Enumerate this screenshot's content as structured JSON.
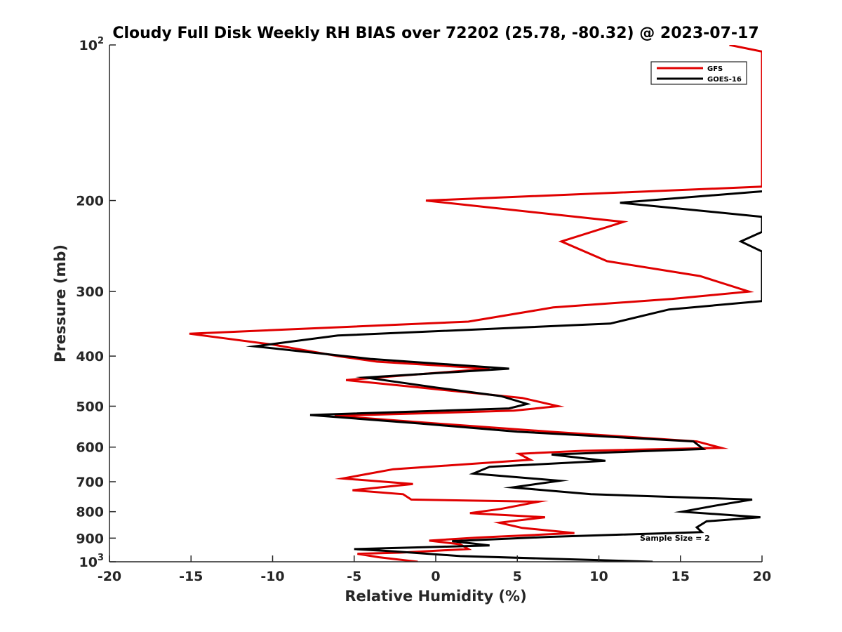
{
  "chart_data": {
    "type": "line",
    "title": "Cloudy Full Disk Weekly RH BIAS over 72202 (25.78, -80.32) @ 2023-07-17",
    "xlabel": "Relative Humidity (%)",
    "ylabel": "Pressure (mb)",
    "xlim": [
      -20,
      20
    ],
    "ylim": [
      100,
      1000
    ],
    "yscale": "log",
    "y_reversed": true,
    "xticks": [
      -20,
      -15,
      -10,
      -5,
      0,
      5,
      10,
      15,
      20
    ],
    "yticks": [
      {
        "value": 100,
        "base": "10",
        "exp": "2"
      },
      {
        "value": 200,
        "label": "200"
      },
      {
        "value": 300,
        "label": "300"
      },
      {
        "value": 400,
        "label": "400"
      },
      {
        "value": 500,
        "label": "500"
      },
      {
        "value": 600,
        "label": "600"
      },
      {
        "value": 700,
        "label": "700"
      },
      {
        "value": 800,
        "label": "800"
      },
      {
        "value": 900,
        "label": "900"
      },
      {
        "value": 1000,
        "base": "10",
        "exp": "3"
      }
    ],
    "grid": false,
    "legend_position": "top-right",
    "annotation": "Sample Size = 2",
    "series": [
      {
        "name": "GFS",
        "color": "#e00000",
        "points": [
          {
            "x": 18.0,
            "y": 100
          },
          {
            "x": 20.0,
            "y": 103
          },
          {
            "x": 20.0,
            "y": 188
          },
          {
            "x": -0.6,
            "y": 200
          },
          {
            "x": 11.5,
            "y": 220
          },
          {
            "x": 7.7,
            "y": 240
          },
          {
            "x": 10.5,
            "y": 262
          },
          {
            "x": 16.2,
            "y": 280
          },
          {
            "x": 19.2,
            "y": 300
          },
          {
            "x": 14.5,
            "y": 310
          },
          {
            "x": 7.2,
            "y": 322
          },
          {
            "x": 2.0,
            "y": 343
          },
          {
            "x": -15.1,
            "y": 362
          },
          {
            "x": -10.0,
            "y": 380
          },
          {
            "x": -6.0,
            "y": 400
          },
          {
            "x": -3.6,
            "y": 410
          },
          {
            "x": 3.3,
            "y": 423
          },
          {
            "x": -5.5,
            "y": 445
          },
          {
            "x": -1.0,
            "y": 460
          },
          {
            "x": 5.3,
            "y": 482
          },
          {
            "x": 7.5,
            "y": 500
          },
          {
            "x": 4.8,
            "y": 510
          },
          {
            "x": -6.2,
            "y": 522
          },
          {
            "x": 0.0,
            "y": 540
          },
          {
            "x": 7.0,
            "y": 560
          },
          {
            "x": 16.0,
            "y": 585
          },
          {
            "x": 17.5,
            "y": 602
          },
          {
            "x": 9.0,
            "y": 610
          },
          {
            "x": 5.1,
            "y": 618
          },
          {
            "x": 5.8,
            "y": 635
          },
          {
            "x": -2.6,
            "y": 662
          },
          {
            "x": -5.7,
            "y": 690
          },
          {
            "x": -1.4,
            "y": 707
          },
          {
            "x": -5.1,
            "y": 727
          },
          {
            "x": -2.0,
            "y": 740
          },
          {
            "x": -1.5,
            "y": 758
          },
          {
            "x": 6.3,
            "y": 765
          },
          {
            "x": 4.0,
            "y": 790
          },
          {
            "x": 2.1,
            "y": 805
          },
          {
            "x": 6.7,
            "y": 820
          },
          {
            "x": 3.9,
            "y": 840
          },
          {
            "x": 5.3,
            "y": 860
          },
          {
            "x": 8.5,
            "y": 880
          },
          {
            "x": 2.5,
            "y": 898
          },
          {
            "x": -0.4,
            "y": 910
          },
          {
            "x": 1.5,
            "y": 925
          },
          {
            "x": 2.0,
            "y": 945
          },
          {
            "x": -2.2,
            "y": 960
          },
          {
            "x": -4.8,
            "y": 965
          },
          {
            "x": -3.5,
            "y": 980
          },
          {
            "x": -1.1,
            "y": 1000
          }
        ]
      },
      {
        "name": "GOES-16",
        "color": "#000000",
        "points": [
          {
            "x": 20.0,
            "y": 192
          },
          {
            "x": 11.3,
            "y": 202
          },
          {
            "x": 20.0,
            "y": 215
          },
          {
            "x": 20.0,
            "y": 230
          },
          {
            "x": 18.7,
            "y": 240
          },
          {
            "x": 20.0,
            "y": 251
          },
          {
            "x": 20.0,
            "y": 313
          },
          {
            "x": 14.3,
            "y": 325
          },
          {
            "x": 10.7,
            "y": 346
          },
          {
            "x": -6.0,
            "y": 365
          },
          {
            "x": -11.1,
            "y": 383
          },
          {
            "x": -4.0,
            "y": 405
          },
          {
            "x": 4.5,
            "y": 423
          },
          {
            "x": -4.3,
            "y": 440
          },
          {
            "x": 0.0,
            "y": 460
          },
          {
            "x": 4.0,
            "y": 478
          },
          {
            "x": 5.6,
            "y": 495
          },
          {
            "x": 4.5,
            "y": 505
          },
          {
            "x": -7.7,
            "y": 520
          },
          {
            "x": -1.0,
            "y": 540
          },
          {
            "x": 5.0,
            "y": 560
          },
          {
            "x": 15.8,
            "y": 585
          },
          {
            "x": 16.4,
            "y": 605
          },
          {
            "x": 7.1,
            "y": 620
          },
          {
            "x": 10.4,
            "y": 638
          },
          {
            "x": 3.3,
            "y": 655
          },
          {
            "x": 2.3,
            "y": 675
          },
          {
            "x": 7.6,
            "y": 697
          },
          {
            "x": 4.7,
            "y": 718
          },
          {
            "x": 9.5,
            "y": 740
          },
          {
            "x": 19.4,
            "y": 758
          },
          {
            "x": 17.2,
            "y": 778
          },
          {
            "x": 15.1,
            "y": 800
          },
          {
            "x": 19.9,
            "y": 820
          },
          {
            "x": 16.6,
            "y": 835
          },
          {
            "x": 16.0,
            "y": 858
          },
          {
            "x": 16.3,
            "y": 876
          },
          {
            "x": 7.0,
            "y": 895
          },
          {
            "x": 1.0,
            "y": 912
          },
          {
            "x": 3.3,
            "y": 930
          },
          {
            "x": -5.0,
            "y": 945
          },
          {
            "x": -2.5,
            "y": 955
          },
          {
            "x": 1.5,
            "y": 975
          },
          {
            "x": 13.3,
            "y": 1000
          }
        ]
      }
    ]
  }
}
